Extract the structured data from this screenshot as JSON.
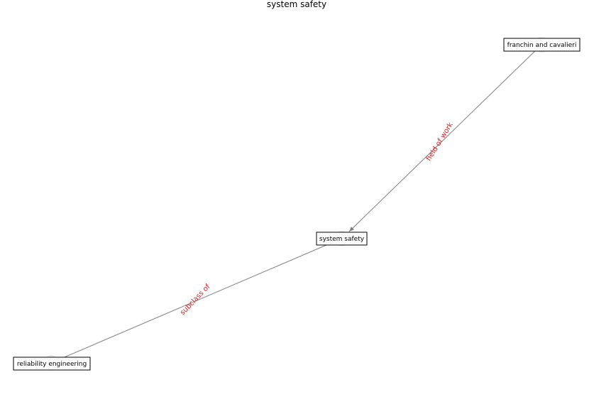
{
  "title": "system safety",
  "colors": {
    "edge": "#808080",
    "edge_label": "#e41a1c",
    "node_circle": "#e8e8e8",
    "box_border": "#000000"
  },
  "nodes": [
    {
      "id": "franchin",
      "label": "franchin and cavalieri"
    },
    {
      "id": "system_safety",
      "label": "system safety"
    },
    {
      "id": "reliability",
      "label": "reliability engineering"
    }
  ],
  "edges": [
    {
      "from": "franchin",
      "to": "system_safety",
      "label": "field of work"
    },
    {
      "from": "system_safety",
      "to": "reliability",
      "label": "subclass of"
    }
  ]
}
